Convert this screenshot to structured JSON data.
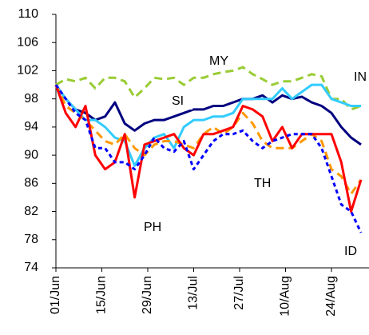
{
  "chart_data": {
    "type": "line",
    "x": [
      0,
      3,
      6,
      9,
      12,
      15,
      18,
      21,
      24,
      27,
      30,
      33,
      36,
      39,
      42,
      45,
      48,
      51,
      54,
      57,
      60,
      63,
      66,
      69,
      72,
      75,
      78,
      81,
      84,
      87,
      90,
      93
    ],
    "xlim": [
      0,
      95
    ],
    "xticks": [
      {
        "value": 0,
        "label": "01/Jun"
      },
      {
        "value": 14,
        "label": "15/Jun"
      },
      {
        "value": 28,
        "label": "29/Jun"
      },
      {
        "value": 42,
        "label": "13/Jul"
      },
      {
        "value": 56,
        "label": "27/Jul"
      },
      {
        "value": 70,
        "label": "10/Aug"
      },
      {
        "value": 84,
        "label": "24/Aug"
      }
    ],
    "ylim": [
      74,
      110
    ],
    "yticks": [
      74,
      78,
      82,
      86,
      90,
      94,
      98,
      102,
      106,
      110
    ],
    "grid": false,
    "series": [
      {
        "name": "MY",
        "color": "#99cc33",
        "line_style": "dashed",
        "values": [
          100,
          100.8,
          100.5,
          101,
          99.5,
          101,
          101,
          100.5,
          98.2,
          99.5,
          101,
          100.8,
          101,
          100,
          101,
          101,
          101.5,
          101.8,
          102,
          102.5,
          101.5,
          100.8,
          100,
          100.5,
          100.5,
          101,
          101.5,
          101.2,
          98,
          98,
          96.5,
          97
        ]
      },
      {
        "name": "SI",
        "color": "#000080",
        "line_style": "solid",
        "values": [
          100,
          98,
          96.5,
          96,
          95,
          95.5,
          97.5,
          94.5,
          93.5,
          94.5,
          95,
          95,
          95.5,
          96,
          96.5,
          96.5,
          97,
          97,
          97.5,
          98,
          98,
          98.5,
          97.5,
          98.5,
          98,
          98.3,
          97.5,
          97,
          96,
          94,
          92.5,
          91.5
        ]
      },
      {
        "name": "IN",
        "color": "#33ccff",
        "line_style": "solid",
        "values": [
          100,
          98,
          96.5,
          95,
          95,
          94,
          92.5,
          92,
          88.5,
          91,
          92.5,
          93,
          91,
          94,
          95,
          95,
          95.5,
          95.5,
          96,
          98,
          98,
          98,
          98,
          99.5,
          98,
          99,
          100,
          100,
          98,
          97.5,
          97,
          97
        ]
      },
      {
        "name": "TH",
        "color": "#ff9900",
        "line_style": "dashed",
        "values": [
          100,
          97,
          96,
          95,
          93.5,
          92,
          91.5,
          93,
          91,
          90,
          91.5,
          92,
          92,
          91.5,
          91,
          93,
          94,
          93,
          94,
          96,
          94.5,
          92,
          91,
          91,
          91,
          92,
          93,
          92,
          88,
          87,
          84.5,
          86.5
        ]
      },
      {
        "name": "PH",
        "color": "#ff0000",
        "line_style": "solid",
        "values": [
          100,
          96,
          94,
          97,
          90,
          88,
          89,
          93,
          84,
          91.5,
          92,
          92.5,
          93,
          91,
          90,
          93,
          93,
          93.5,
          94,
          97,
          96.5,
          95.5,
          92,
          94,
          91,
          93,
          93,
          93,
          93,
          89,
          82,
          86.5
        ]
      },
      {
        "name": "ID",
        "color": "#0000ff",
        "line_style": "dotted",
        "values": [
          100,
          98,
          96,
          95,
          91,
          91,
          89,
          89,
          88,
          90,
          92.5,
          91,
          90.5,
          92,
          88,
          90,
          92,
          93,
          93,
          93.5,
          92,
          91,
          92,
          92.5,
          93,
          93,
          93,
          91,
          87,
          83,
          82,
          79
        ]
      }
    ]
  }
}
